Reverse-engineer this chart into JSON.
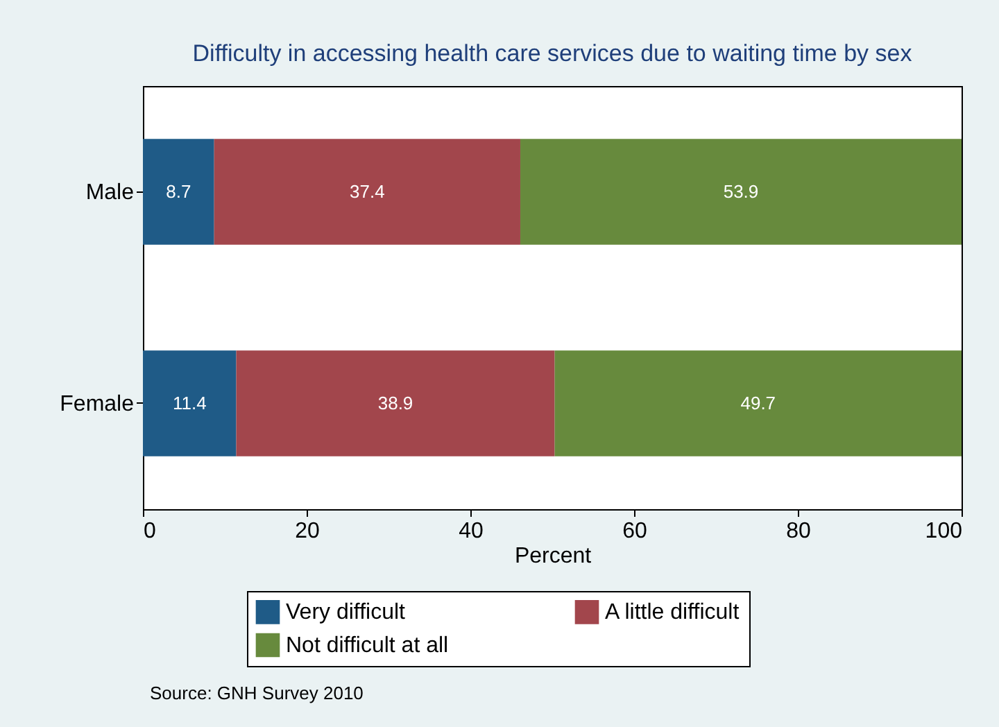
{
  "chart_data": {
    "type": "bar",
    "orientation": "horizontal",
    "stacked": true,
    "title": "Difficulty in accessing health care services due to waiting time by sex",
    "categories": [
      "Male",
      "Female"
    ],
    "series": [
      {
        "name": "Very difficult",
        "color": "#1f5b87",
        "values": [
          8.7,
          11.4
        ]
      },
      {
        "name": "A little difficult",
        "color": "#a2464c",
        "values": [
          37.4,
          38.9
        ]
      },
      {
        "name": "Not difficult at all",
        "color": "#678a3d",
        "values": [
          53.9,
          49.7
        ]
      }
    ],
    "xlabel": "Percent",
    "xlim": [
      0,
      100
    ],
    "xticks": [
      0,
      20,
      40,
      60,
      80,
      100
    ],
    "data_labels": true,
    "grid": false,
    "legend": "bottom",
    "annotations": [
      "Source: GNH Survey 2010"
    ]
  }
}
